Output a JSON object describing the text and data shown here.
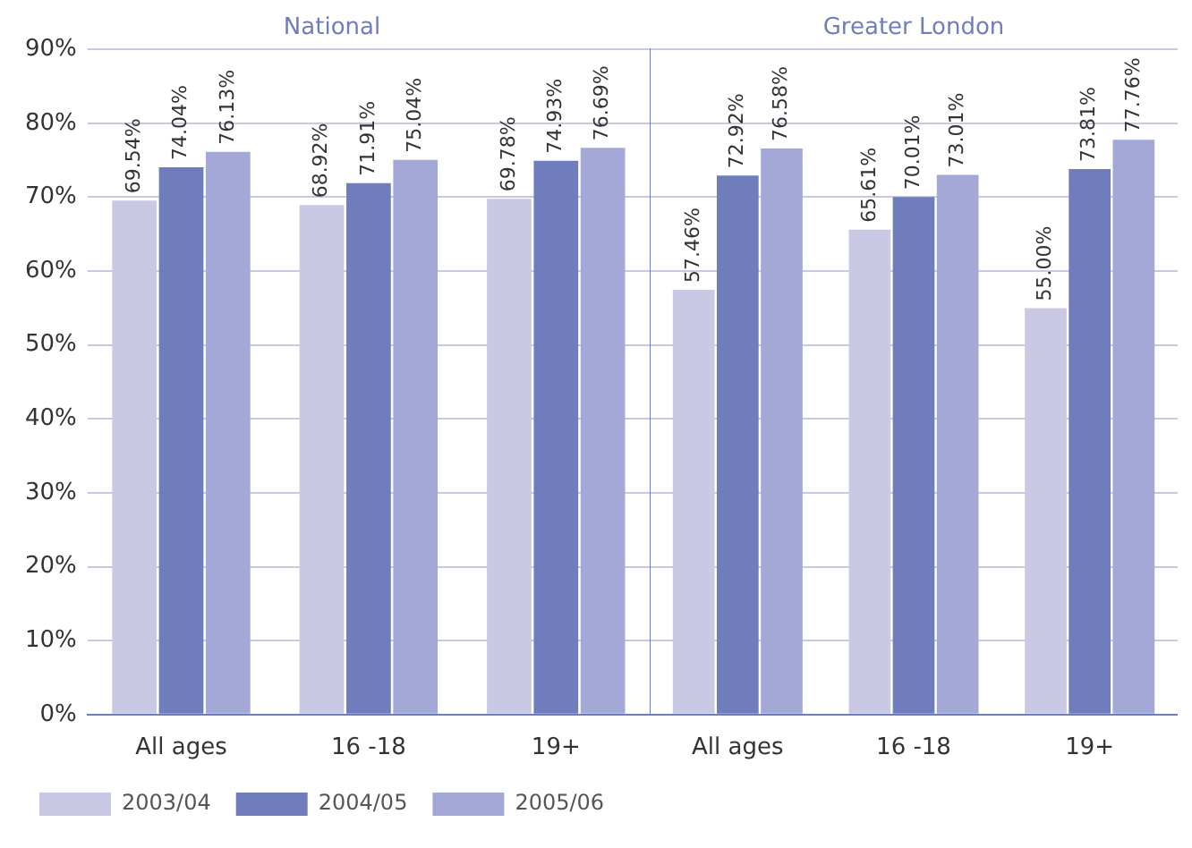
{
  "chart_data": [
    {
      "type": "bar",
      "title": "National",
      "categories": [
        "All ages",
        "16 -18",
        "19+"
      ],
      "series": [
        {
          "name": "2003/04",
          "color": "#c9c9e6",
          "values": [
            69.54,
            68.92,
            69.78
          ],
          "value_labels": [
            "69.54%",
            "68.92%",
            "69.78%"
          ]
        },
        {
          "name": "2004/05",
          "color": "#6f7dbd",
          "values": [
            74.04,
            71.91,
            74.93
          ],
          "value_labels": [
            "74.04%",
            "71.91%",
            "74.93%"
          ]
        },
        {
          "name": "2005/06",
          "color": "#a3a8d6",
          "values": [
            76.13,
            75.04,
            76.69
          ],
          "value_labels": [
            "76.13%",
            "75.04%",
            "76.69%"
          ]
        }
      ],
      "ylim": [
        0,
        90
      ],
      "yticks": [
        {
          "value": 0,
          "label": "0%"
        },
        {
          "value": 10,
          "label": "10%"
        },
        {
          "value": 20,
          "label": "20%"
        },
        {
          "value": 30,
          "label": "30%"
        },
        {
          "value": 40,
          "label": "40%"
        },
        {
          "value": 50,
          "label": "50%"
        },
        {
          "value": 60,
          "label": "60%"
        },
        {
          "value": 70,
          "label": "70%"
        },
        {
          "value": 80,
          "label": "80%"
        },
        {
          "value": 90,
          "label": "90%"
        }
      ],
      "grid": "y",
      "legend": "bottom left"
    },
    {
      "type": "bar",
      "title": "Greater London",
      "categories": [
        "All ages",
        "16 -18",
        "19+"
      ],
      "series": [
        {
          "color": "#c9c9e6",
          "values": [
            57.46,
            65.61,
            55.0
          ],
          "value_labels": [
            "57.46%",
            "65.61%",
            "55.00%"
          ]
        },
        {
          "color": "#6f7dbd",
          "values": [
            72.92,
            70.01,
            73.81
          ],
          "value_labels": [
            "72.92%",
            "70.01%",
            "73.81%"
          ]
        },
        {
          "color": "#a3a8d6",
          "values": [
            76.58,
            73.01,
            77.76
          ],
          "value_labels": [
            "76.58%",
            "73.01%",
            "77.76%"
          ]
        }
      ],
      "ylim": [
        0,
        90
      ],
      "yticks": [
        {
          "value": 0,
          "label": null
        },
        {
          "value": 10,
          "label": null
        },
        {
          "value": 20,
          "label": null
        },
        {
          "value": 30,
          "label": null
        },
        {
          "value": 40,
          "label": null
        },
        {
          "value": 50,
          "label": null
        },
        {
          "value": 60,
          "label": null
        },
        {
          "value": 70,
          "label": null
        },
        {
          "value": 80,
          "label": null
        },
        {
          "value": 90,
          "label": null
        }
      ],
      "grid": "y",
      "tick_labels": "x"
    }
  ]
}
